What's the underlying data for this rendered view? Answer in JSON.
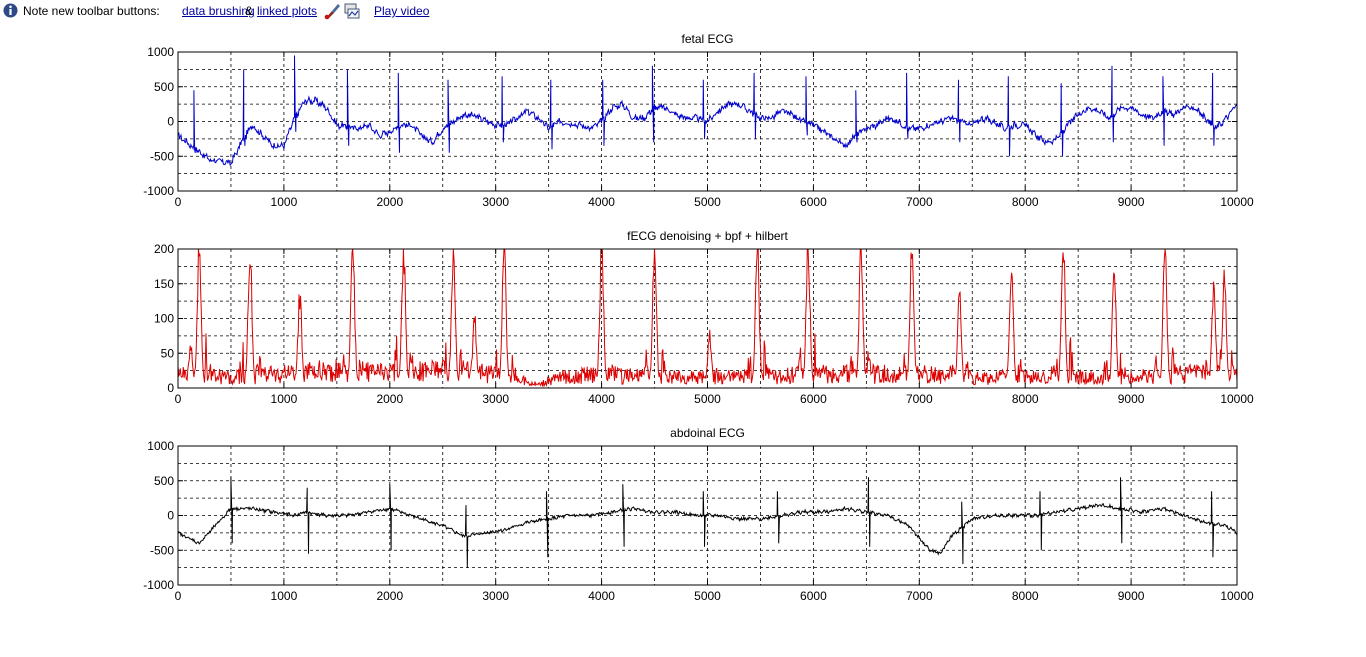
{
  "infobar": {
    "icon": "info-icon",
    "note_label": "Note new toolbar buttons:",
    "link_brushing": "data brushing",
    "amp": "&",
    "link_linked": "linked plots",
    "brush_icon": "brush-icon",
    "linked_icon": "linked-plots-icon",
    "link_video": "Play video",
    "link_color": "#00009c"
  },
  "chart_data": [
    {
      "type": "line",
      "title": "fetal ECG",
      "xlabel": "",
      "ylabel": "",
      "xlim": [
        0,
        10000
      ],
      "ylim": [
        -1000,
        1000
      ],
      "xticks": [
        0,
        1000,
        2000,
        3000,
        4000,
        5000,
        6000,
        7000,
        8000,
        9000,
        10000
      ],
      "yticks": [
        -1000,
        -500,
        0,
        500,
        1000
      ],
      "grid": true,
      "color": "#0000cc",
      "baseline": [
        [
          0,
          -200
        ],
        [
          300,
          -550
        ],
        [
          500,
          -600
        ],
        [
          600,
          -300
        ],
        [
          700,
          -50
        ],
        [
          900,
          -350
        ],
        [
          1000,
          -350
        ],
        [
          1100,
          50
        ],
        [
          1200,
          300
        ],
        [
          1300,
          300
        ],
        [
          1400,
          200
        ],
        [
          1500,
          -50
        ],
        [
          1700,
          -100
        ],
        [
          1800,
          -50
        ],
        [
          1900,
          -200
        ],
        [
          2000,
          -150
        ],
        [
          2100,
          -50
        ],
        [
          2200,
          -50
        ],
        [
          2300,
          -200
        ],
        [
          2400,
          -300
        ],
        [
          2500,
          -100
        ],
        [
          2700,
          100
        ],
        [
          2800,
          80
        ],
        [
          3000,
          -50
        ],
        [
          3100,
          -50
        ],
        [
          3200,
          50
        ],
        [
          3300,
          150
        ],
        [
          3400,
          50
        ],
        [
          3500,
          -100
        ],
        [
          3600,
          0
        ],
        [
          3800,
          -50
        ],
        [
          3900,
          -100
        ],
        [
          4000,
          0
        ],
        [
          4100,
          200
        ],
        [
          4200,
          250
        ],
        [
          4300,
          50
        ],
        [
          4400,
          50
        ],
        [
          4500,
          200
        ],
        [
          4600,
          200
        ],
        [
          4700,
          100
        ],
        [
          4800,
          50
        ],
        [
          4900,
          50
        ],
        [
          5000,
          0
        ],
        [
          5100,
          150
        ],
        [
          5200,
          250
        ],
        [
          5300,
          250
        ],
        [
          5400,
          150
        ],
        [
          5500,
          50
        ],
        [
          5600,
          50
        ],
        [
          5700,
          150
        ],
        [
          5800,
          100
        ],
        [
          5900,
          0
        ],
        [
          6000,
          -50
        ],
        [
          6100,
          -150
        ],
        [
          6200,
          -250
        ],
        [
          6300,
          -350
        ],
        [
          6400,
          -200
        ],
        [
          6500,
          -100
        ],
        [
          6600,
          -50
        ],
        [
          6700,
          50
        ],
        [
          6800,
          0
        ],
        [
          6900,
          -100
        ],
        [
          7000,
          -100
        ],
        [
          7100,
          -50
        ],
        [
          7300,
          50
        ],
        [
          7400,
          0
        ],
        [
          7500,
          -50
        ],
        [
          7600,
          50
        ],
        [
          7700,
          0
        ],
        [
          7800,
          -100
        ],
        [
          7900,
          -50
        ],
        [
          8000,
          -50
        ],
        [
          8100,
          -200
        ],
        [
          8200,
          -300
        ],
        [
          8300,
          -250
        ],
        [
          8400,
          -50
        ],
        [
          8500,
          100
        ],
        [
          8600,
          200
        ],
        [
          8700,
          150
        ],
        [
          8800,
          50
        ],
        [
          8900,
          200
        ],
        [
          9000,
          200
        ],
        [
          9100,
          100
        ],
        [
          9200,
          50
        ],
        [
          9300,
          150
        ],
        [
          9400,
          100
        ],
        [
          9500,
          200
        ],
        [
          9600,
          200
        ],
        [
          9700,
          50
        ],
        [
          9800,
          -100
        ],
        [
          9900,
          50
        ],
        [
          10000,
          250
        ]
      ],
      "spikes": [
        [
          150,
          450,
          -450
        ],
        [
          620,
          750,
          -350
        ],
        [
          1100,
          950,
          -150
        ],
        [
          1600,
          750,
          -350
        ],
        [
          2080,
          700,
          -450
        ],
        [
          2550,
          600,
          -450
        ],
        [
          3060,
          650,
          -300
        ],
        [
          3520,
          600,
          -400
        ],
        [
          4010,
          600,
          -350
        ],
        [
          4480,
          800,
          -300
        ],
        [
          4960,
          600,
          -250
        ],
        [
          5440,
          700,
          -250
        ],
        [
          5930,
          650,
          -200
        ],
        [
          6400,
          450,
          -300
        ],
        [
          6880,
          700,
          -250
        ],
        [
          7370,
          600,
          -300
        ],
        [
          7840,
          650,
          -500
        ],
        [
          8340,
          550,
          -500
        ],
        [
          8820,
          800,
          -300
        ],
        [
          9300,
          650,
          -350
        ],
        [
          9770,
          700,
          -350
        ]
      ]
    },
    {
      "type": "line",
      "title": "fECG denoising + bpf + hilbert",
      "xlabel": "",
      "ylabel": "",
      "xlim": [
        0,
        10000
      ],
      "ylim": [
        0,
        200
      ],
      "xticks": [
        0,
        1000,
        2000,
        3000,
        4000,
        5000,
        6000,
        7000,
        8000,
        9000,
        10000
      ],
      "yticks": [
        0,
        50,
        100,
        150,
        200
      ],
      "grid": true,
      "color": "#dd0000",
      "baseline": [
        [
          0,
          20
        ],
        [
          500,
          15
        ],
        [
          1000,
          20
        ],
        [
          1500,
          25
        ],
        [
          2000,
          20
        ],
        [
          2500,
          25
        ],
        [
          3000,
          20
        ],
        [
          3400,
          5
        ],
        [
          3600,
          15
        ],
        [
          4000,
          20
        ],
        [
          4500,
          15
        ],
        [
          5000,
          15
        ],
        [
          5500,
          15
        ],
        [
          6000,
          20
        ],
        [
          6500,
          20
        ],
        [
          7000,
          20
        ],
        [
          7500,
          15
        ],
        [
          8000,
          15
        ],
        [
          8500,
          15
        ],
        [
          9000,
          15
        ],
        [
          9500,
          20
        ],
        [
          10000,
          20
        ]
      ],
      "peaks": [
        [
          120,
          60
        ],
        [
          200,
          200
        ],
        [
          680,
          200
        ],
        [
          1150,
          130
        ],
        [
          1650,
          200
        ],
        [
          2130,
          200
        ],
        [
          2600,
          200
        ],
        [
          2800,
          100
        ],
        [
          3080,
          200
        ],
        [
          4000,
          200
        ],
        [
          4500,
          200
        ],
        [
          5020,
          75
        ],
        [
          5470,
          200
        ],
        [
          5950,
          200
        ],
        [
          6450,
          200
        ],
        [
          6930,
          200
        ],
        [
          7380,
          130
        ],
        [
          7870,
          170
        ],
        [
          8360,
          200
        ],
        [
          8840,
          160
        ],
        [
          9320,
          200
        ],
        [
          9780,
          150
        ],
        [
          9880,
          160
        ]
      ]
    },
    {
      "type": "line",
      "title": "abdoinal ECG",
      "xlabel": "",
      "ylabel": "",
      "xlim": [
        0,
        10000
      ],
      "ylim": [
        -1000,
        1000
      ],
      "xticks": [
        0,
        1000,
        2000,
        3000,
        4000,
        5000,
        6000,
        7000,
        8000,
        9000,
        10000
      ],
      "yticks": [
        -1000,
        -500,
        0,
        500,
        1000
      ],
      "grid": true,
      "color": "#000000",
      "baseline": [
        [
          0,
          -250
        ],
        [
          200,
          -400
        ],
        [
          350,
          -150
        ],
        [
          500,
          100
        ],
        [
          700,
          100
        ],
        [
          900,
          50
        ],
        [
          1100,
          0
        ],
        [
          1200,
          50
        ],
        [
          1400,
          0
        ],
        [
          1600,
          0
        ],
        [
          1800,
          50
        ],
        [
          2000,
          100
        ],
        [
          2100,
          50
        ],
        [
          2300,
          -50
        ],
        [
          2500,
          -150
        ],
        [
          2700,
          -300
        ],
        [
          2900,
          -250
        ],
        [
          3100,
          -200
        ],
        [
          3300,
          -100
        ],
        [
          3500,
          -50
        ],
        [
          3700,
          0
        ],
        [
          3900,
          0
        ],
        [
          4100,
          50
        ],
        [
          4300,
          100
        ],
        [
          4500,
          50
        ],
        [
          4700,
          50
        ],
        [
          4900,
          0
        ],
        [
          5100,
          0
        ],
        [
          5300,
          -50
        ],
        [
          5500,
          -50
        ],
        [
          5700,
          0
        ],
        [
          5900,
          50
        ],
        [
          6100,
          50
        ],
        [
          6300,
          100
        ],
        [
          6500,
          50
        ],
        [
          6700,
          0
        ],
        [
          6900,
          -150
        ],
        [
          7100,
          -500
        ],
        [
          7200,
          -550
        ],
        [
          7300,
          -300
        ],
        [
          7500,
          -50
        ],
        [
          7700,
          0
        ],
        [
          7900,
          0
        ],
        [
          8100,
          0
        ],
        [
          8300,
          50
        ],
        [
          8500,
          100
        ],
        [
          8700,
          150
        ],
        [
          8900,
          100
        ],
        [
          9100,
          50
        ],
        [
          9300,
          100
        ],
        [
          9500,
          0
        ],
        [
          9700,
          -100
        ],
        [
          9900,
          -150
        ],
        [
          10000,
          -250
        ]
      ],
      "spikes": [
        [
          500,
          550,
          -400
        ],
        [
          1220,
          400,
          -550
        ],
        [
          2000,
          450,
          -500
        ],
        [
          2720,
          150,
          -750
        ],
        [
          3480,
          350,
          -600
        ],
        [
          4200,
          450,
          -450
        ],
        [
          4960,
          350,
          -450
        ],
        [
          5660,
          350,
          -400
        ],
        [
          6520,
          550,
          -450
        ],
        [
          7400,
          200,
          -700
        ],
        [
          8140,
          350,
          -500
        ],
        [
          8900,
          550,
          -400
        ],
        [
          9760,
          350,
          -600
        ]
      ]
    }
  ]
}
